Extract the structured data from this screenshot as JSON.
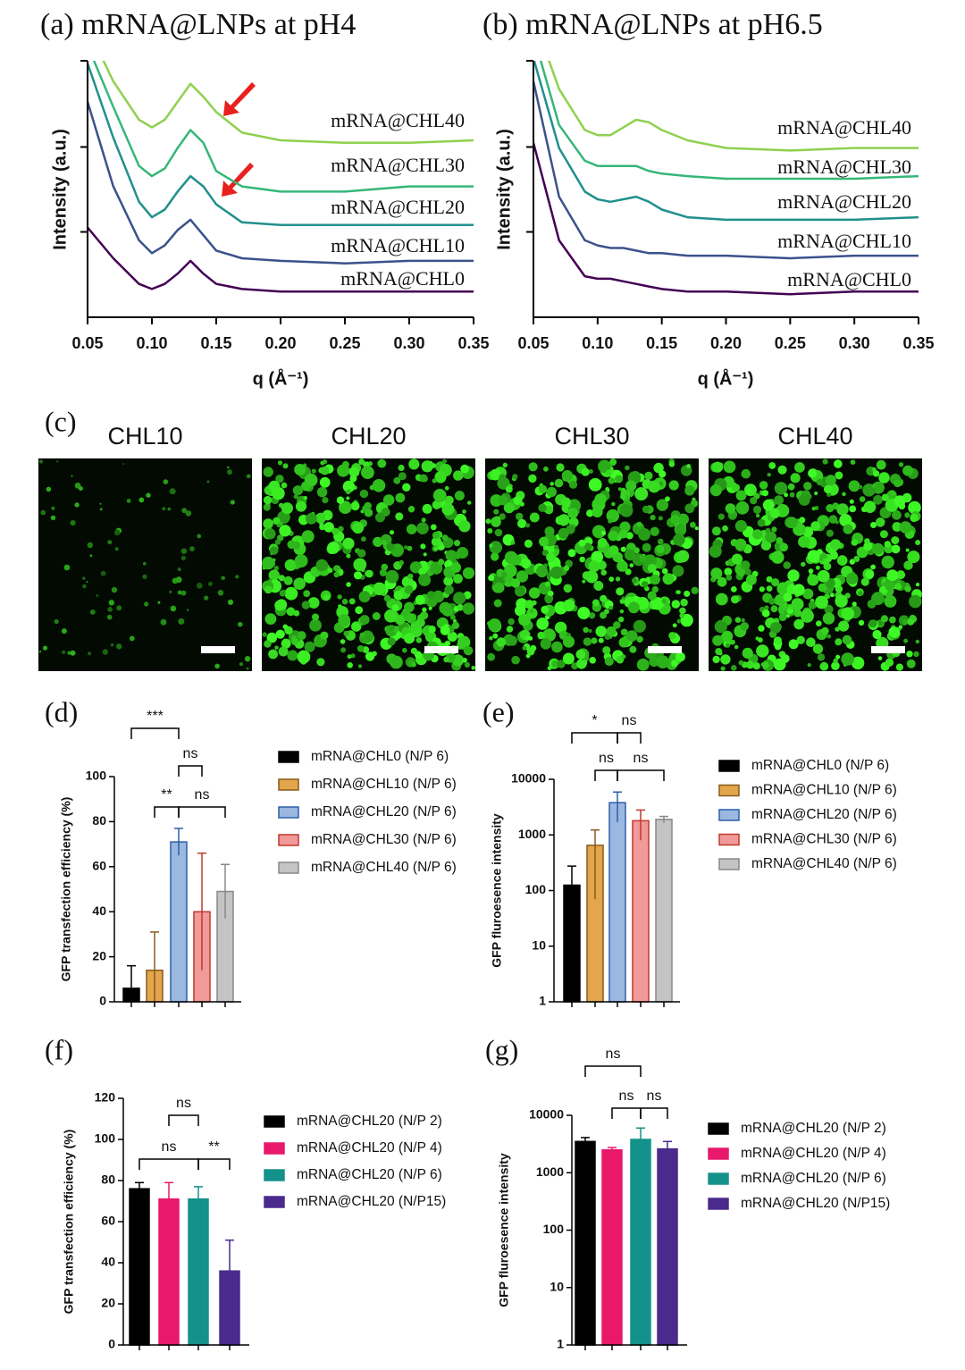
{
  "chart_data": [
    {
      "type": "line",
      "title": "(a) mRNA@LNPs at pH4",
      "xlabel": "q (Å⁻¹)",
      "ylabel": "Intensity (a.u.)",
      "x": [
        0.05,
        0.07,
        0.09,
        0.1,
        0.11,
        0.12,
        0.13,
        0.14,
        0.15,
        0.17,
        0.2,
        0.25,
        0.3,
        0.35
      ],
      "xlim": [
        0.05,
        0.35
      ],
      "xticks": [
        0.05,
        {
          "value": 0.1,
          "label": "0.10"
        },
        0.15,
        {
          "value": 0.2,
          "label": "0.20"
        },
        0.25,
        {
          "value": 0.3,
          "label": "0.30"
        },
        0.35
      ],
      "ylim": [
        0,
        100
      ],
      "series": [
        {
          "name": "mRNA@CHL40",
          "color": "#8fd14f",
          "values": [
            113,
            92,
            77,
            74,
            77,
            84,
            91,
            86,
            80,
            72,
            69,
            68,
            68,
            69
          ]
        },
        {
          "name": "mRNA@CHL30",
          "color": "#35b779",
          "values": [
            106,
            82,
            59,
            55,
            58,
            66,
            73,
            68,
            57,
            51,
            49,
            49,
            51,
            51
          ]
        },
        {
          "name": "mRNA@CHL20",
          "color": "#21908d",
          "values": [
            99,
            70,
            45,
            39,
            42,
            49,
            55,
            51,
            44,
            37,
            36,
            36,
            36,
            36
          ]
        },
        {
          "name": "mRNA@CHL10",
          "color": "#3b528b",
          "values": [
            84,
            51,
            30,
            25,
            28,
            34,
            38,
            32,
            26,
            23,
            22,
            21,
            22,
            22
          ]
        },
        {
          "name": "mRNA@CHL0",
          "color": "#440154",
          "values": [
            35,
            23,
            13,
            11,
            13,
            17,
            22,
            17,
            13,
            11,
            10,
            10,
            10,
            10
          ]
        }
      ]
    },
    {
      "type": "line",
      "title": "(b) mRNA@LNPs at pH6.5",
      "xlabel": "q (Å⁻¹)",
      "ylabel": "Intensity (a.u.)",
      "x": [
        0.05,
        0.07,
        0.09,
        0.1,
        0.11,
        0.12,
        0.13,
        0.14,
        0.15,
        0.17,
        0.2,
        0.25,
        0.3,
        0.35
      ],
      "xlim": [
        0.05,
        0.35
      ],
      "xticks": [
        0.05,
        {
          "value": 0.1,
          "label": "0.10"
        },
        0.15,
        {
          "value": 0.2,
          "label": "0.20"
        },
        0.25,
        {
          "value": 0.3,
          "label": "0.30"
        },
        0.35
      ],
      "ylim": [
        0,
        100
      ],
      "series": [
        {
          "name": "mRNA@CHL40",
          "color": "#8fd14f",
          "values": [
            117,
            89,
            73,
            71,
            71,
            74,
            77,
            76,
            73,
            69,
            66,
            65,
            66,
            66
          ]
        },
        {
          "name": "mRNA@CHL30",
          "color": "#35b779",
          "values": [
            110,
            75,
            61,
            59,
            59,
            59,
            59,
            57,
            56,
            55,
            54,
            54,
            54,
            55
          ]
        },
        {
          "name": "mRNA@CHL20",
          "color": "#21908d",
          "values": [
            101,
            66,
            49,
            46,
            45,
            46,
            47,
            45,
            42,
            39,
            38,
            38,
            38,
            39
          ]
        },
        {
          "name": "mRNA@CHL10",
          "color": "#3b528b",
          "values": [
            92,
            47,
            30,
            28,
            27,
            27,
            26,
            25,
            25,
            24,
            24,
            23,
            24,
            24
          ]
        },
        {
          "name": "mRNA@CHL0",
          "color": "#440154",
          "values": [
            68,
            30,
            16,
            15,
            15,
            14,
            13,
            12,
            11,
            10,
            10,
            9,
            10,
            10
          ]
        }
      ]
    },
    {
      "type": "bar",
      "label": "(d)",
      "ylabel": "GFP transfection efficiency (%)",
      "ylim": [
        0,
        100
      ],
      "yticks": [
        0,
        20,
        40,
        60,
        80,
        100
      ],
      "series": [
        {
          "name": "mRNA@CHL0 (N/P 6)",
          "color": "#000000",
          "edgecolor": "#000000",
          "values": [
            6
          ],
          "errors": [
            10
          ]
        },
        {
          "name": "mRNA@CHL10 (N/P 6)",
          "color": "#e3a64c",
          "edgecolor": "#8a5a1a",
          "values": [
            14
          ],
          "errors": [
            17
          ]
        },
        {
          "name": "mRNA@CHL20 (N/P 6)",
          "color": "#9ab8e0",
          "edgecolor": "#2e5fa8",
          "values": [
            71
          ],
          "errors": [
            6
          ]
        },
        {
          "name": "mRNA@CHL30 (N/P 6)",
          "color": "#f09a9a",
          "edgecolor": "#c0392b",
          "values": [
            40
          ],
          "errors": [
            26
          ]
        },
        {
          "name": "mRNA@CHL40 (N/P 6)",
          "color": "#c4c4c4",
          "edgecolor": "#888888",
          "values": [
            49
          ],
          "errors": [
            12
          ]
        }
      ],
      "annotations": [
        "***",
        "ns",
        "**",
        "ns"
      ]
    },
    {
      "type": "bar",
      "label": "(e)",
      "ylabel": "GFP fluroesence intensity",
      "yscale": "log",
      "ylim": [
        1,
        10000
      ],
      "yticks": [
        1,
        10,
        100,
        1000,
        10000
      ],
      "series": [
        {
          "name": "mRNA@CHL0 (N/P 6)",
          "color": "#000000",
          "edgecolor": "#000000",
          "values": [
            125
          ],
          "errors": [
            150
          ]
        },
        {
          "name": "mRNA@CHL10 (N/P 6)",
          "color": "#e3a64c",
          "edgecolor": "#8a5a1a",
          "values": [
            650
          ],
          "errors": [
            580
          ]
        },
        {
          "name": "mRNA@CHL20 (N/P 6)",
          "color": "#9ab8e0",
          "edgecolor": "#2e5fa8",
          "values": [
            3800
          ],
          "errors": [
            2100
          ]
        },
        {
          "name": "mRNA@CHL30 (N/P 6)",
          "color": "#f09a9a",
          "edgecolor": "#c0392b",
          "values": [
            1800
          ],
          "errors": [
            1000
          ]
        },
        {
          "name": "mRNA@CHL40 (N/P 6)",
          "color": "#c4c4c4",
          "edgecolor": "#888888",
          "values": [
            1900
          ],
          "errors": [
            250
          ]
        }
      ],
      "annotations": [
        "*",
        "ns",
        "ns",
        "ns"
      ]
    },
    {
      "type": "bar",
      "label": "(f)",
      "ylabel": "GFP transfection efficiency (%)",
      "ylim": [
        0,
        120
      ],
      "yticks": [
        0,
        20,
        40,
        60,
        80,
        100,
        120
      ],
      "series": [
        {
          "name": "mRNA@CHL20 (N/P 2)",
          "color": "#000000",
          "edgecolor": "#000000",
          "values": [
            76
          ],
          "errors": [
            3
          ]
        },
        {
          "name": "mRNA@CHL20 (N/P 4)",
          "color": "#e8196b",
          "edgecolor": "#e8196b",
          "values": [
            71
          ],
          "errors": [
            8
          ]
        },
        {
          "name": "mRNA@CHL20 (N/P 6)",
          "color": "#14918a",
          "edgecolor": "#14918a",
          "values": [
            71
          ],
          "errors": [
            6
          ]
        },
        {
          "name": "mRNA@CHL20 (N/P15)",
          "color": "#4a2a8c",
          "edgecolor": "#4a2a8c",
          "values": [
            36
          ],
          "errors": [
            15
          ]
        }
      ],
      "annotations": [
        "ns",
        "ns",
        "**"
      ]
    },
    {
      "type": "bar",
      "label": "(g)",
      "ylabel": "GFP fluroesence intensity",
      "yscale": "log",
      "ylim": [
        1,
        10000
      ],
      "yticks": [
        1,
        10,
        100,
        1000,
        10000
      ],
      "series": [
        {
          "name": "mRNA@CHL20 (N/P 2)",
          "color": "#000000",
          "edgecolor": "#000000",
          "values": [
            3500
          ],
          "errors": [
            600
          ]
        },
        {
          "name": "mRNA@CHL20 (N/P 4)",
          "color": "#e8196b",
          "edgecolor": "#e8196b",
          "values": [
            2500
          ],
          "errors": [
            250
          ]
        },
        {
          "name": "mRNA@CHL20 (N/P 6)",
          "color": "#14918a",
          "edgecolor": "#14918a",
          "values": [
            3800
          ],
          "errors": [
            2200
          ]
        },
        {
          "name": "mRNA@CHL20 (N/P15)",
          "color": "#4a2a8c",
          "edgecolor": "#4a2a8c",
          "values": [
            2600
          ],
          "errors": [
            900
          ]
        }
      ],
      "annotations": [
        "ns",
        "ns",
        "ns"
      ]
    }
  ],
  "figure_c": {
    "label": "(c)",
    "panels": [
      "CHL10",
      "CHL20",
      "CHL30",
      "CHL40"
    ]
  }
}
